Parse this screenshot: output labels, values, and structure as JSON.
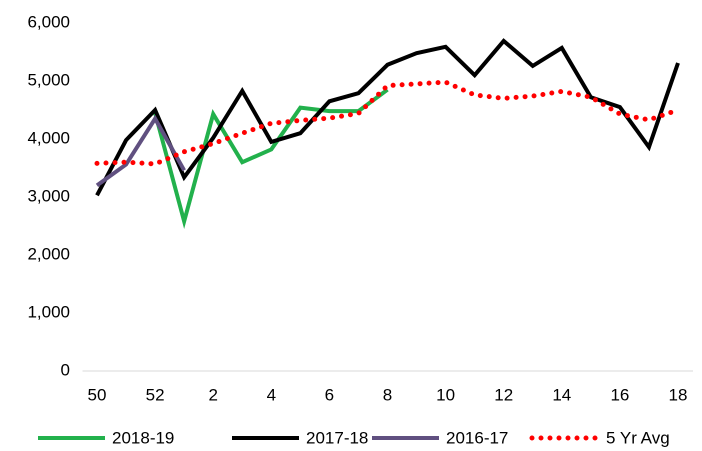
{
  "chart_data": {
    "type": "line",
    "categories": [
      "50",
      null,
      "52",
      null,
      "2",
      null,
      "4",
      null,
      "6",
      null,
      "8",
      null,
      "10",
      null,
      "12",
      null,
      "14",
      null,
      "16",
      null,
      "18"
    ],
    "ylim": [
      0,
      6000
    ],
    "yticks": [
      0,
      {
        "value": 1000,
        "label": "1,000"
      },
      {
        "value": 2000,
        "label": "2,000"
      },
      {
        "value": 3000,
        "label": "3,000"
      },
      {
        "value": 4000,
        "label": "4,000"
      },
      {
        "value": 5000,
        "label": "5,000"
      },
      {
        "value": 6000,
        "label": "6,000"
      }
    ],
    "grid": false,
    "legend": "bottom",
    "series": [
      {
        "name": "2018-19",
        "color": "#22b14c",
        "style": "solid",
        "values": [
          null,
          null,
          4450,
          2580,
          4430,
          3600,
          3820,
          4540,
          4480,
          4480,
          4850,
          null,
          null,
          null,
          null,
          null,
          null,
          null,
          null,
          null,
          null
        ]
      },
      {
        "name": "2017-18",
        "color": "#000000",
        "style": "solid",
        "values": [
          3030,
          3980,
          4500,
          3340,
          4020,
          4830,
          3950,
          4100,
          4650,
          4790,
          5280,
          5480,
          5590,
          5100,
          5690,
          5260,
          5570,
          4720,
          4550,
          3860,
          5310
        ]
      },
      {
        "name": "2016-17",
        "color": "#605080",
        "style": "solid",
        "values": [
          3200,
          3560,
          4350,
          3460,
          null,
          null,
          null,
          null,
          null,
          null,
          null,
          null,
          null,
          null,
          null,
          null,
          null,
          null,
          null,
          null,
          null
        ]
      },
      {
        "name": "5 Yr Avg",
        "color": "#ff0000",
        "style": "dotted",
        "values": [
          3580,
          3600,
          3570,
          3780,
          3920,
          4100,
          4270,
          4320,
          4360,
          4440,
          4920,
          4950,
          4980,
          4760,
          4700,
          4740,
          4820,
          4720,
          4430,
          4330,
          4500
        ]
      }
    ]
  }
}
